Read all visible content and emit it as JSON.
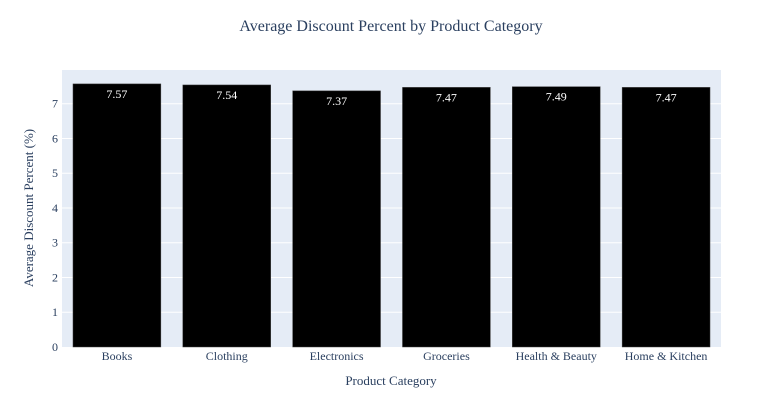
{
  "chart_data": {
    "type": "bar",
    "title": "Average Discount Percent by Product Category",
    "xlabel": "Product Category",
    "ylabel": "Average Discount Percent (%)",
    "categories": [
      "Books",
      "Clothing",
      "Electronics",
      "Groceries",
      "Health & Beauty",
      "Home & Kitchen"
    ],
    "values": [
      7.57,
      7.54,
      7.37,
      7.47,
      7.49,
      7.47
    ],
    "data_labels": [
      "7.57",
      "7.54",
      "7.37",
      "7.47",
      "7.49",
      "7.47"
    ],
    "y_ticks": [
      "0",
      "1",
      "2",
      "3",
      "4",
      "5",
      "6",
      "7"
    ],
    "ylim": [
      0,
      7.97
    ],
    "grid": true,
    "colors": {
      "bar": "#000000",
      "plot_bg": "#e5ecf6",
      "grid": "#ffffff",
      "text": "#2a3f5f"
    }
  }
}
